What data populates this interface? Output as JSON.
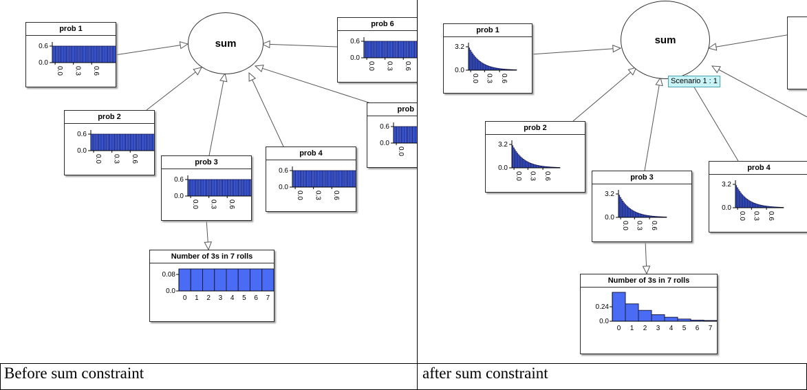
{
  "captions": {
    "left": "Before sum constraint",
    "right": "after sum constraint"
  },
  "sum_label": "sum",
  "scenario_label": "Scenario 1 : 1",
  "colors": {
    "bar": "#4a6cf4",
    "bar_edge": "#0a0a40",
    "axis": "#000000"
  },
  "panels": {
    "left": {
      "prob_nodes": [
        {
          "id": "prob1",
          "title": "prob 1",
          "y_ticks": [
            "0.6",
            "0.0"
          ],
          "x_ticks": [
            "0.0",
            "0.3",
            "0.6"
          ]
        },
        {
          "id": "prob2",
          "title": "prob 2",
          "y_ticks": [
            "0.6",
            "0.0"
          ],
          "x_ticks": [
            "0.0",
            "0.3",
            "0.6"
          ]
        },
        {
          "id": "prob3",
          "title": "prob 3",
          "y_ticks": [
            "0.6",
            "0.0"
          ],
          "x_ticks": [
            "0.0",
            "0.3",
            "0.6"
          ]
        },
        {
          "id": "prob4",
          "title": "prob 4",
          "y_ticks": [
            "0.6",
            "0.0"
          ],
          "x_ticks": [
            "0.0",
            "0.3",
            "0.6"
          ]
        },
        {
          "id": "prob5",
          "title": "prob",
          "y_ticks": [
            "0.6",
            "0.0"
          ],
          "x_ticks": [
            "0.0"
          ]
        },
        {
          "id": "prob6",
          "title": "prob 6",
          "y_ticks": [
            "0.6",
            "0.0"
          ],
          "x_ticks": [
            "0.0",
            "0.3",
            "0.6"
          ]
        }
      ],
      "rolls_node": {
        "title": "Number of 3s in 7 rolls",
        "y_ticks": [
          "0.08",
          "0.0"
        ],
        "categories": [
          "0",
          "1",
          "2",
          "3",
          "4",
          "5",
          "6",
          "7"
        ]
      }
    },
    "right": {
      "prob_nodes": [
        {
          "id": "prob1",
          "title": "prob 1",
          "y_ticks": [
            "3.2",
            "0.0"
          ],
          "x_ticks": [
            "0.0",
            "0.3",
            "0.6"
          ]
        },
        {
          "id": "prob2",
          "title": "prob 2",
          "y_ticks": [
            "3.2",
            "0.0"
          ],
          "x_ticks": [
            "0.0",
            "0.3",
            "0.6"
          ]
        },
        {
          "id": "prob3",
          "title": "prob 3",
          "y_ticks": [
            "3.2",
            "0.0"
          ],
          "x_ticks": [
            "0.0",
            "0.3",
            "0.6"
          ]
        },
        {
          "id": "prob4",
          "title": "prob 4",
          "y_ticks": [
            "3.2",
            "0.0"
          ],
          "x_ticks": [
            "0.0",
            "0.3",
            "0.6"
          ]
        }
      ],
      "rolls_node": {
        "title": "Number of 3s in 7 rolls",
        "y_ticks": [
          "0.24",
          "0.0"
        ],
        "categories": [
          "0",
          "1",
          "2",
          "3",
          "4",
          "5",
          "6",
          "7"
        ]
      }
    }
  },
  "chart_data": [
    {
      "type": "bar",
      "panel": "before",
      "node": "prob 1..6",
      "x_range": [
        0,
        1
      ],
      "ylim": [
        0,
        0.6
      ],
      "distribution": "uniform",
      "y_value": 1.0
    },
    {
      "type": "bar",
      "panel": "before",
      "node": "Number of 3s in 7 rolls",
      "categories": [
        "0",
        "1",
        "2",
        "3",
        "4",
        "5",
        "6",
        "7"
      ],
      "values": [
        0.125,
        0.125,
        0.125,
        0.125,
        0.125,
        0.125,
        0.125,
        0.125
      ]
    },
    {
      "type": "bar",
      "panel": "after",
      "node": "prob 1..4",
      "x_range": [
        0,
        0.6
      ],
      "ylim": [
        0,
        3.2
      ],
      "distribution": "decaying",
      "decay_rate": 7.0
    },
    {
      "type": "bar",
      "panel": "after",
      "node": "Number of 3s in 7 rolls",
      "categories": [
        "0",
        "1",
        "2",
        "3",
        "4",
        "5",
        "6",
        "7"
      ],
      "values": [
        0.4,
        0.24,
        0.15,
        0.09,
        0.055,
        0.03,
        0.015,
        0.01
      ]
    }
  ]
}
